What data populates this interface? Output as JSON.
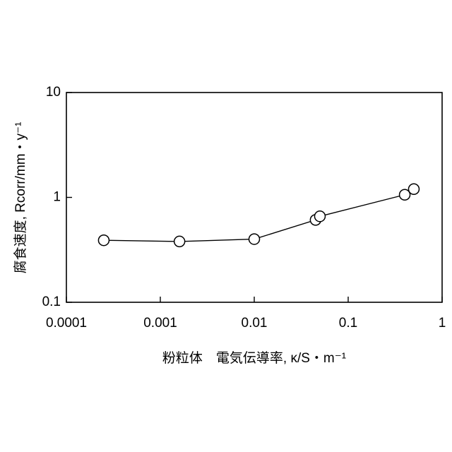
{
  "chart_data": {
    "type": "scatter_line",
    "x_label": "粉粒体　電気伝導率, κ/S・m⁻¹",
    "y_label": "腐食速度, Rcorr/mm・y⁻¹",
    "x": [
      0.00025,
      0.0016,
      0.01,
      0.045,
      0.05,
      0.4,
      0.5
    ],
    "values": [
      0.39,
      0.38,
      0.4,
      0.61,
      0.66,
      1.06,
      1.2
    ],
    "color": "#000000",
    "xscale": "log",
    "yscale": "log",
    "xlim": [
      0.0001,
      1
    ],
    "ylim": [
      0.1,
      10
    ],
    "xticks": [
      0.0001,
      0.001,
      0.01,
      0.1,
      1
    ],
    "yticks": [
      0.1,
      1,
      10
    ]
  }
}
